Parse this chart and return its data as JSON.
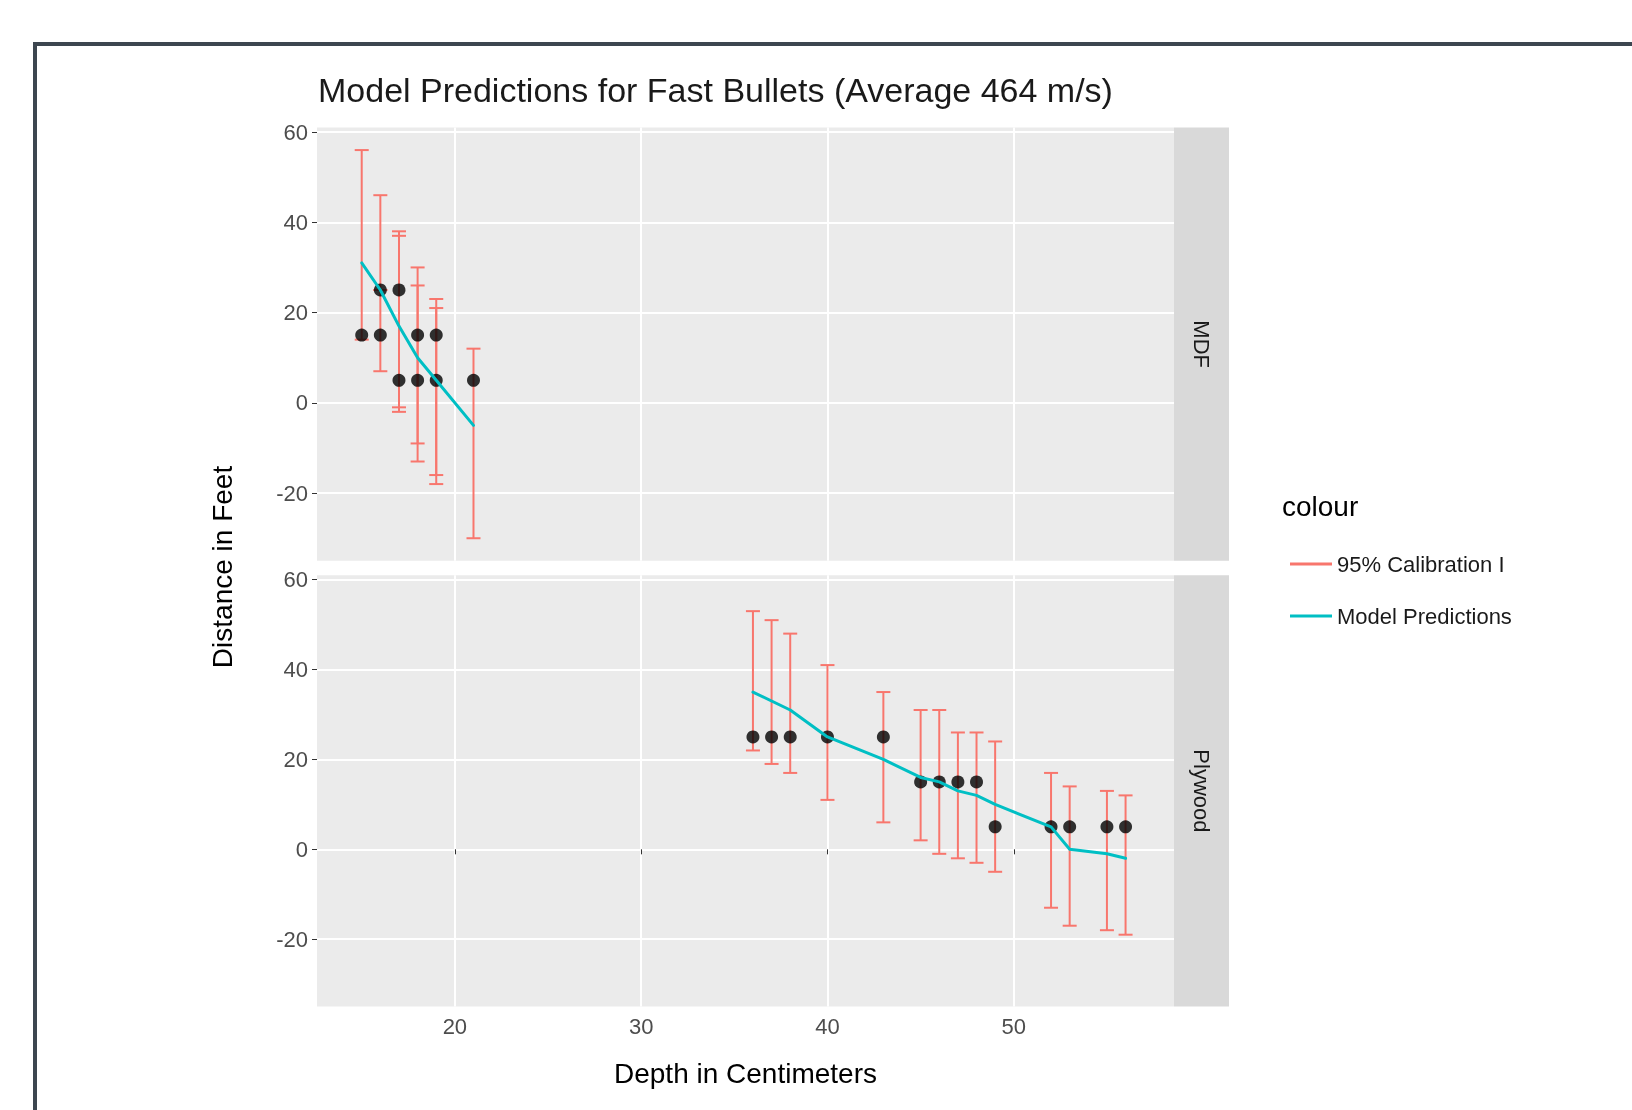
{
  "chart_data": [
    {
      "type": "scatter",
      "title": "Model Predictions for Fast Bullets (Average 464 m/s)",
      "ylabel": "Distance in Feet",
      "annotations": [
        "MDF"
      ],
      "legend": "right",
      "legend_title": "colour",
      "grid": true,
      "tick_labels": "y",
      "marker": "circle",
      "xlim": [
        12.6,
        58.6
      ],
      "xticks": [
        20,
        30,
        40,
        50
      ],
      "ylim": [
        -35,
        61
      ],
      "yticks": [
        -20,
        0,
        20,
        40,
        60
      ],
      "series": [
        {
          "name": "95% Calibration I",
          "color": "#f8766d",
          "colors": [
            "#000000",
            "#000000",
            "#000000",
            "#000000",
            "#000000",
            "#000000",
            "#000000",
            "#000000",
            "#000000",
            "#000000"
          ],
          "x": [
            15,
            16,
            16,
            17,
            17,
            18,
            18,
            19,
            19,
            21
          ],
          "values": [
            15,
            25,
            15,
            25,
            5,
            15,
            5,
            15,
            5,
            5
          ],
          "errors": [
            [
              14,
              56
            ],
            null,
            [
              7,
              46
            ],
            [
              -1,
              38
            ],
            [
              -2,
              37
            ],
            [
              -9,
              30
            ],
            [
              -13,
              26
            ],
            [
              -16,
              23
            ],
            [
              -18,
              21
            ],
            [
              -30,
              12
            ]
          ]
        },
        {
          "name": "Model Predictions",
          "type": "line",
          "marker": "none",
          "color": "#00bfc4",
          "x": [
            15,
            16,
            17,
            18,
            19,
            21
          ],
          "values": [
            31,
            25,
            17,
            10,
            5,
            -5
          ]
        }
      ]
    },
    {
      "type": "scatter",
      "xlabel": "Depth in Centimeters",
      "annotations": [
        "Plywood"
      ],
      "grid": true,
      "marker": "circle",
      "xlim": [
        12.6,
        58.6
      ],
      "xticks": [
        20,
        30,
        40,
        50
      ],
      "ylim": [
        -35,
        61
      ],
      "yticks": [
        -20,
        0,
        20,
        40,
        60
      ],
      "series": [
        {
          "color": "#f8766d",
          "colors": [
            "#000000",
            "#000000",
            "#000000",
            "#000000",
            "#000000",
            "#000000",
            "#000000",
            "#000000",
            "#000000",
            "#000000",
            "#000000",
            "#000000",
            "#000000",
            "#000000"
          ],
          "x": [
            36,
            37,
            38,
            40,
            43,
            45,
            46,
            47,
            48,
            49,
            52,
            53,
            55,
            56
          ],
          "values": [
            25,
            25,
            25,
            25,
            25,
            15,
            15,
            15,
            15,
            5,
            5,
            5,
            5,
            5
          ],
          "errors": [
            [
              22,
              53
            ],
            [
              19,
              51
            ],
            [
              17,
              48
            ],
            [
              11,
              41
            ],
            [
              6,
              35
            ],
            [
              2,
              31
            ],
            [
              -1,
              31
            ],
            [
              -2,
              26
            ],
            [
              -3,
              26
            ],
            [
              -5,
              24
            ],
            [
              -13,
              17
            ],
            [
              -17,
              14
            ],
            [
              -18,
              13
            ],
            [
              -19,
              12
            ]
          ]
        },
        {
          "type": "line",
          "marker": "none",
          "color": "#00bfc4",
          "x": [
            36,
            38,
            40,
            43,
            45,
            46,
            47,
            48,
            49,
            52,
            53,
            55,
            56
          ],
          "values": [
            35,
            31,
            25,
            20,
            16,
            15,
            13,
            12,
            10,
            5,
            0,
            -1,
            -2
          ]
        }
      ]
    }
  ]
}
